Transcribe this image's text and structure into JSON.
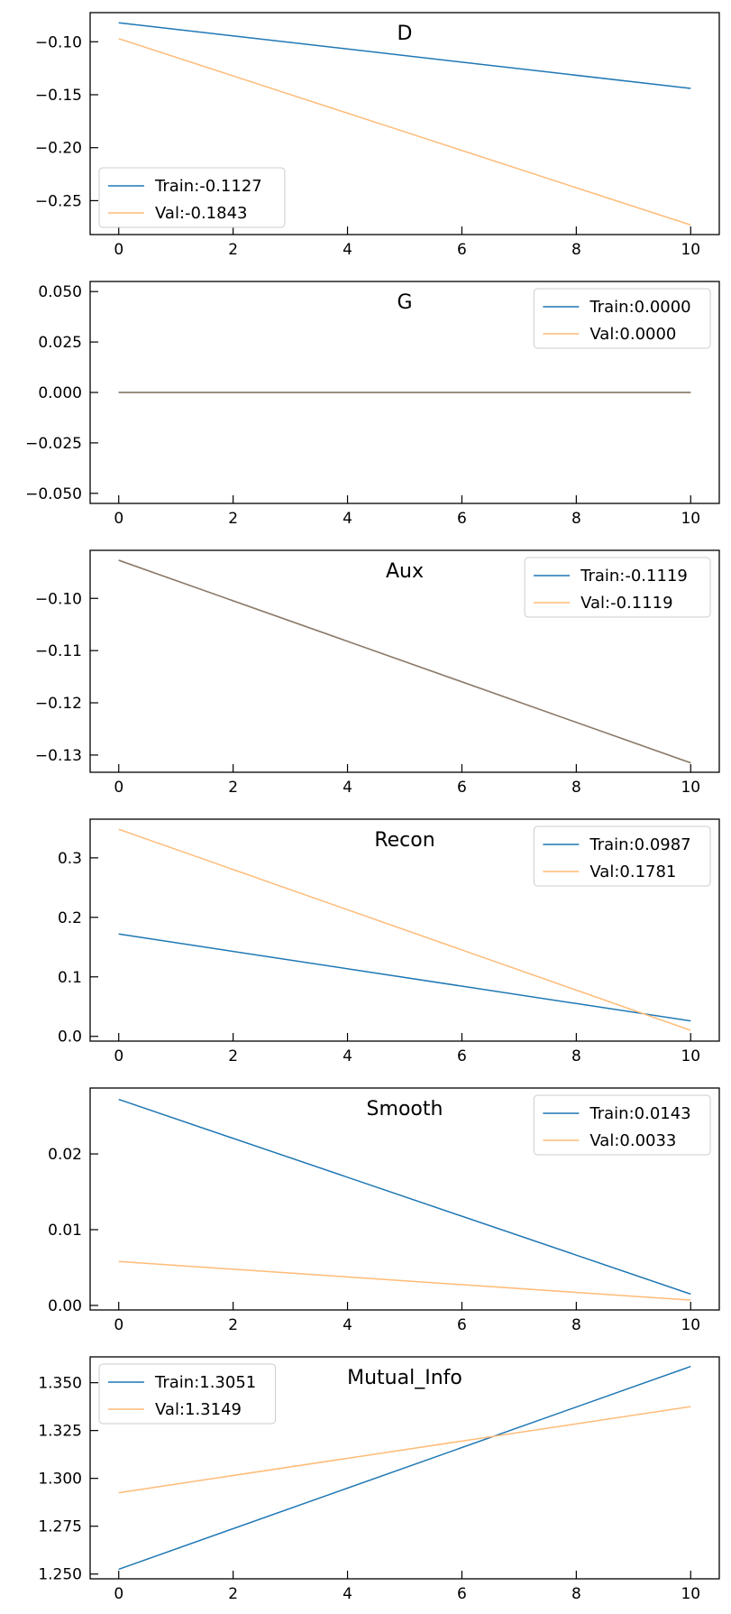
{
  "colors": {
    "train": "#1f77b4",
    "val": "#ffbb78",
    "overlap": "#8c7c6c",
    "axis": "#000000"
  },
  "chart_data": [
    {
      "type": "line",
      "title": "D",
      "xlabel": "",
      "ylabel": "",
      "xlim": [
        -0.5,
        10.5
      ],
      "ylim": [
        -0.282,
        -0.0725
      ],
      "xticks": [
        0,
        2,
        4,
        6,
        8,
        10
      ],
      "xtick_labels": [
        "0",
        "2",
        "4",
        "6",
        "8",
        "10"
      ],
      "yticks": [
        -0.1,
        -0.15,
        -0.2,
        -0.25
      ],
      "ytick_labels": [
        "−0.10",
        "−0.15",
        "−0.20",
        "−0.25"
      ],
      "legend_position": "lower-left",
      "series": [
        {
          "name": "Train:-0.1127",
          "x": [
            0,
            10
          ],
          "y": [
            -0.082,
            -0.144
          ]
        },
        {
          "name": "Val:-0.1843",
          "x": [
            0,
            10
          ],
          "y": [
            -0.097,
            -0.273
          ]
        }
      ]
    },
    {
      "type": "line",
      "title": "G",
      "xlabel": "",
      "ylabel": "",
      "xlim": [
        -0.5,
        10.5
      ],
      "ylim": [
        -0.055,
        0.055
      ],
      "xticks": [
        0,
        2,
        4,
        6,
        8,
        10
      ],
      "xtick_labels": [
        "0",
        "2",
        "4",
        "6",
        "8",
        "10"
      ],
      "yticks": [
        0.05,
        0.025,
        0.0,
        -0.025,
        -0.05
      ],
      "ytick_labels": [
        "0.050",
        "0.025",
        "0.000",
        "−0.025",
        "−0.050"
      ],
      "legend_position": "upper-right",
      "series": [
        {
          "name": "Train:0.0000",
          "x": [
            0,
            10
          ],
          "y": [
            0.0,
            0.0
          ]
        },
        {
          "name": "Val:0.0000",
          "x": [
            0,
            10
          ],
          "y": [
            0.0,
            0.0
          ]
        }
      ]
    },
    {
      "type": "line",
      "title": "Aux",
      "xlabel": "",
      "ylabel": "",
      "xlim": [
        -0.5,
        10.5
      ],
      "ylim": [
        -0.1333,
        -0.0908
      ],
      "xticks": [
        0,
        2,
        4,
        6,
        8,
        10
      ],
      "xtick_labels": [
        "0",
        "2",
        "4",
        "6",
        "8",
        "10"
      ],
      "yticks": [
        -0.1,
        -0.11,
        -0.12,
        -0.13
      ],
      "ytick_labels": [
        "−0.10",
        "−0.11",
        "−0.12",
        "−0.13"
      ],
      "legend_position": "upper-right",
      "series": [
        {
          "name": "Train:-0.1119",
          "x": [
            0,
            10
          ],
          "y": [
            -0.0927,
            -0.1315
          ]
        },
        {
          "name": "Val:-0.1119",
          "x": [
            0,
            10
          ],
          "y": [
            -0.0927,
            -0.1315
          ]
        }
      ]
    },
    {
      "type": "line",
      "title": "Recon",
      "xlabel": "",
      "ylabel": "",
      "xlim": [
        -0.5,
        10.5
      ],
      "ylim": [
        -0.008,
        0.365
      ],
      "xticks": [
        0,
        2,
        4,
        6,
        8,
        10
      ],
      "xtick_labels": [
        "0",
        "2",
        "4",
        "6",
        "8",
        "10"
      ],
      "yticks": [
        0.0,
        0.1,
        0.2,
        0.3
      ],
      "ytick_labels": [
        "0.0",
        "0.1",
        "0.2",
        "0.3"
      ],
      "legend_position": "upper-right",
      "series": [
        {
          "name": "Train:0.0987",
          "x": [
            0,
            10
          ],
          "y": [
            0.172,
            0.026
          ]
        },
        {
          "name": "Val:0.1781",
          "x": [
            0,
            10
          ],
          "y": [
            0.348,
            0.01
          ]
        }
      ]
    },
    {
      "type": "line",
      "title": "Smooth",
      "xlabel": "",
      "ylabel": "",
      "xlim": [
        -0.5,
        10.5
      ],
      "ylim": [
        -0.0006,
        0.0287
      ],
      "xticks": [
        0,
        2,
        4,
        6,
        8,
        10
      ],
      "xtick_labels": [
        "0",
        "2",
        "4",
        "6",
        "8",
        "10"
      ],
      "yticks": [
        0.0,
        0.01,
        0.02
      ],
      "ytick_labels": [
        "0.00",
        "0.01",
        "0.02"
      ],
      "legend_position": "upper-right",
      "series": [
        {
          "name": "Train:0.0143",
          "x": [
            0,
            10
          ],
          "y": [
            0.0272,
            0.0015
          ]
        },
        {
          "name": "Val:0.0033",
          "x": [
            0,
            10
          ],
          "y": [
            0.0058,
            0.0007
          ]
        }
      ]
    },
    {
      "type": "line",
      "title": "Mutual_Info",
      "xlabel": "",
      "ylabel": "",
      "xlim": [
        -0.5,
        10.5
      ],
      "ylim": [
        1.2475,
        1.3635
      ],
      "xticks": [
        0,
        2,
        4,
        6,
        8,
        10
      ],
      "xtick_labels": [
        "0",
        "2",
        "4",
        "6",
        "8",
        "10"
      ],
      "yticks": [
        1.25,
        1.275,
        1.3,
        1.325,
        1.35
      ],
      "ytick_labels": [
        "1.250",
        "1.275",
        "1.300",
        "1.325",
        "1.350"
      ],
      "legend_position": "upper-left",
      "series": [
        {
          "name": "Train:1.3051",
          "x": [
            0,
            10
          ],
          "y": [
            1.2525,
            1.3585
          ]
        },
        {
          "name": "Val:1.3149",
          "x": [
            0,
            10
          ],
          "y": [
            1.2925,
            1.3375
          ]
        }
      ]
    }
  ]
}
